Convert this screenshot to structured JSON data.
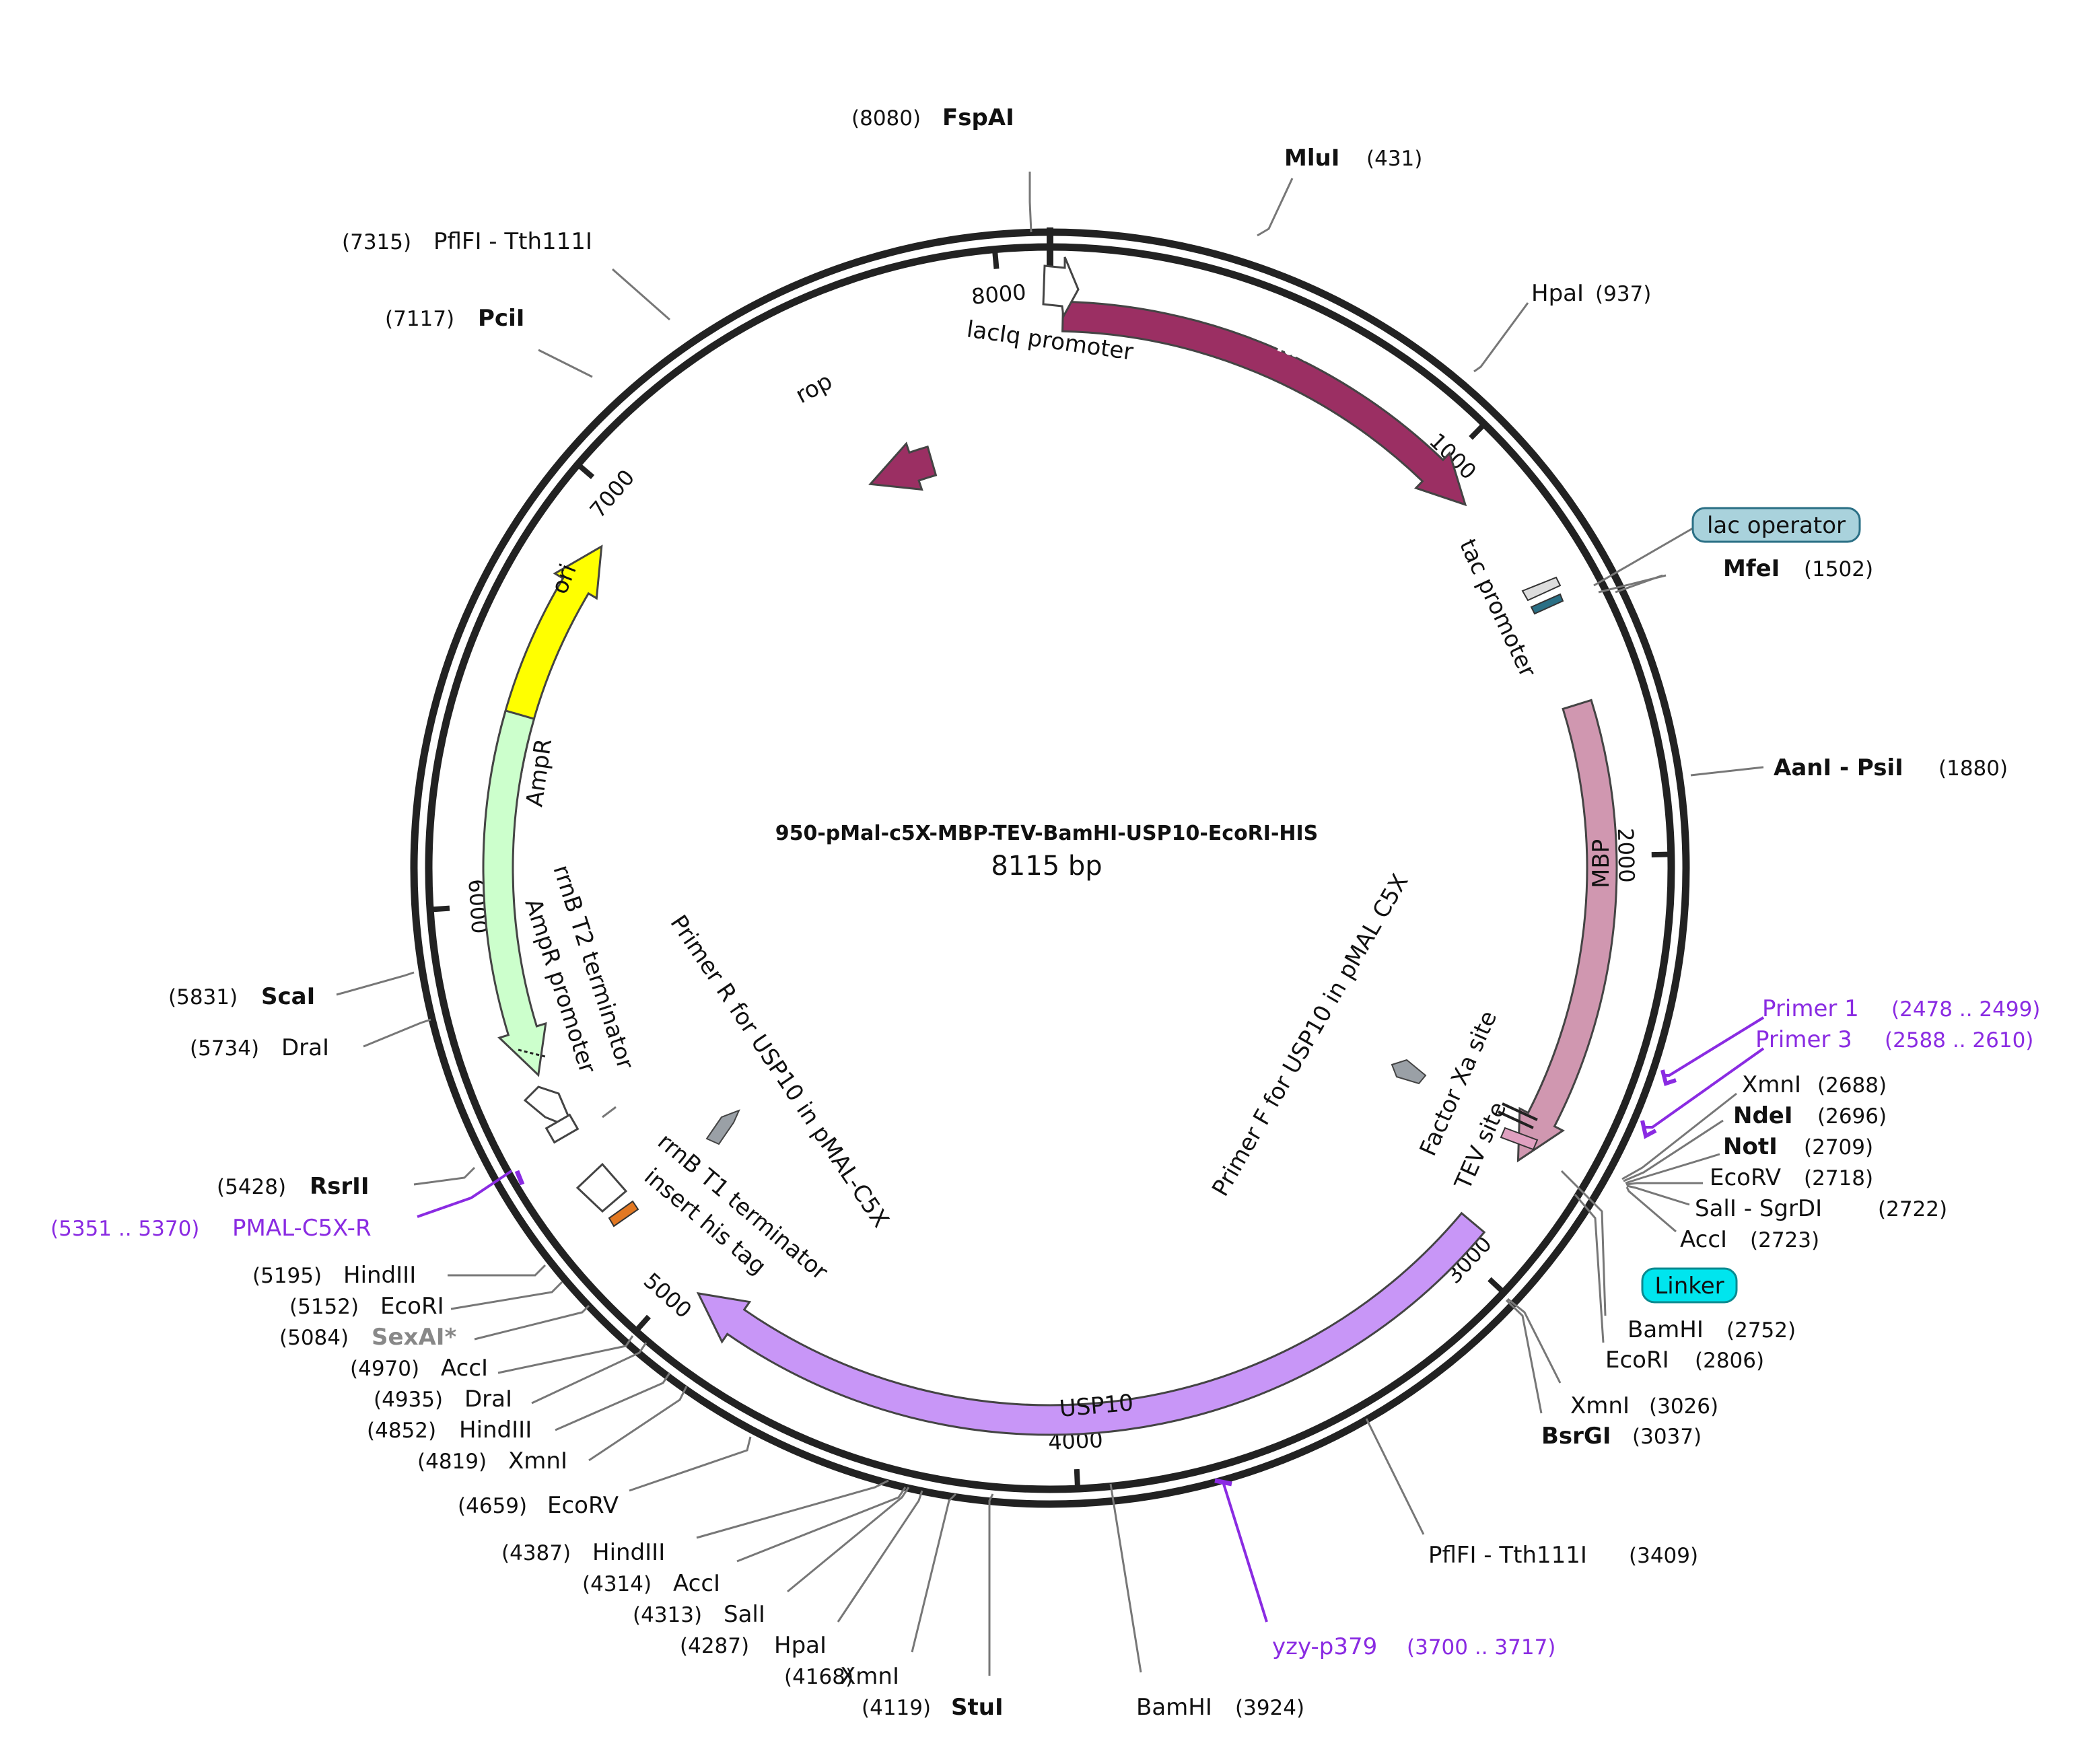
{
  "plasmid": {
    "name": "950-pMal-c5X-MBP-TEV-BamHI-USP10-EcoRI-HIS",
    "size": 8115,
    "size_label": "8115 bp"
  },
  "ticks": [
    1000,
    2000,
    3000,
    4000,
    5000,
    6000,
    7000,
    8000
  ],
  "features": [
    {
      "name": "lacI",
      "start": 30,
      "end": 1100,
      "dir": 1,
      "color": "#9b2f63"
    },
    {
      "name": "lacIq promoter",
      "start": -50,
      "end": 30,
      "dir": 1,
      "color": "#ffffff"
    },
    {
      "name": "rop",
      "start": 7550,
      "end": 7750,
      "dir": -1,
      "color": "#9b2f63"
    },
    {
      "name": "MBP",
      "start": 1640,
      "end": 2750,
      "dir": 1,
      "color": "#d097b0"
    },
    {
      "name": "USP10",
      "start": 2930,
      "end": 4950,
      "dir": 1,
      "color": "#c896f7"
    },
    {
      "name": "ori",
      "start": 6310,
      "end": 6890,
      "dir": 1,
      "color": "#ffff00"
    },
    {
      "name": "AmpR",
      "start": 5590,
      "end": 6450,
      "dir": -1,
      "color": "#ccffcc"
    }
  ],
  "feature_labels": {
    "tac_promoter": "tac promoter",
    "lac_operator": "lac operator",
    "factor_xa": "Factor Xa site",
    "tev_site": "TEV site",
    "linker": "Linker",
    "primer_f": "Primer F for USP10 in pMAL C5X",
    "primer_r": "Primer R for USP10 in pMAL-C5X",
    "rrnb_t2": "rrnB T2 terminator",
    "ampr_promoter": "AmpR promoter",
    "rrnb_t1": "rrnB T1 terminator",
    "insert_his": "insert his tag"
  },
  "sites": [
    {
      "pos": "(8080)",
      "name": "FspAI",
      "bold": true
    },
    {
      "pos": "(431)",
      "name": "MluI",
      "bold": true
    },
    {
      "pos": "(937)",
      "name": "HpaI",
      "bold": false
    },
    {
      "pos": "(1502)",
      "name": "MfeI",
      "bold": true
    },
    {
      "pos": "(1880)",
      "name": "AanI - PsiI",
      "bold": true
    },
    {
      "pos": "(2688)",
      "name": "XmnI",
      "bold": false
    },
    {
      "pos": "(2696)",
      "name": "NdeI",
      "bold": true
    },
    {
      "pos": "(2709)",
      "name": "NotI",
      "bold": true
    },
    {
      "pos": "(2718)",
      "name": "EcoRV",
      "bold": false
    },
    {
      "pos": "(2722)",
      "name": "SalI - SgrDI",
      "bold": false
    },
    {
      "pos": "(2723)",
      "name": "AccI",
      "bold": false
    },
    {
      "pos": "(2752)",
      "name": "BamHI",
      "bold": false
    },
    {
      "pos": "(2806)",
      "name": "EcoRI",
      "bold": false
    },
    {
      "pos": "(3026)",
      "name": "XmnI",
      "bold": false
    },
    {
      "pos": "(3037)",
      "name": "BsrGI",
      "bold": true
    },
    {
      "pos": "(3409)",
      "name": "PflFI - Tth111I",
      "bold": false
    },
    {
      "pos": "(3924)",
      "name": "BamHI",
      "bold": false
    },
    {
      "pos": "(4119)",
      "name": "StuI",
      "bold": true
    },
    {
      "pos": "(4168)",
      "name": "XmnI",
      "bold": false
    },
    {
      "pos": "(4287)",
      "name": "HpaI",
      "bold": false
    },
    {
      "pos": "(4313)",
      "name": "SalI",
      "bold": false
    },
    {
      "pos": "(4314)",
      "name": "AccI",
      "bold": false
    },
    {
      "pos": "(4387)",
      "name": "HindIII",
      "bold": false
    },
    {
      "pos": "(4659)",
      "name": "EcoRV",
      "bold": false
    },
    {
      "pos": "(4819)",
      "name": "XmnI",
      "bold": false
    },
    {
      "pos": "(4852)",
      "name": "HindIII",
      "bold": false
    },
    {
      "pos": "(4935)",
      "name": "DraI",
      "bold": false
    },
    {
      "pos": "(4970)",
      "name": "AccI",
      "bold": false
    },
    {
      "pos": "(5084)",
      "name": "SexAI*",
      "bold": true
    },
    {
      "pos": "(5152)",
      "name": "EcoRI",
      "bold": false
    },
    {
      "pos": "(5195)",
      "name": "HindIII",
      "bold": false
    },
    {
      "pos": "(5428)",
      "name": "RsrII",
      "bold": true
    },
    {
      "pos": "(5734)",
      "name": "DraI",
      "bold": false
    },
    {
      "pos": "(5831)",
      "name": "ScaI",
      "bold": true
    },
    {
      "pos": "(7117)",
      "name": "PciI",
      "bold": true
    },
    {
      "pos": "(7315)",
      "name": "PflFI - Tth111I",
      "bold": false
    }
  ],
  "primers": [
    {
      "name": "Primer 1",
      "range": "(2478 .. 2499)"
    },
    {
      "name": "Primer 3",
      "range": "(2588 .. 2610)"
    },
    {
      "name": "yzy-p379",
      "range": "(3700 .. 3717)"
    },
    {
      "name": "PMAL-C5X-R",
      "range": "(5351 .. 5370)"
    }
  ],
  "colors": {
    "backbone": "#222222",
    "primer": "#8a2be2",
    "lac_operator_box": "#a9d2dc",
    "linker_box": "#00e5ee"
  }
}
